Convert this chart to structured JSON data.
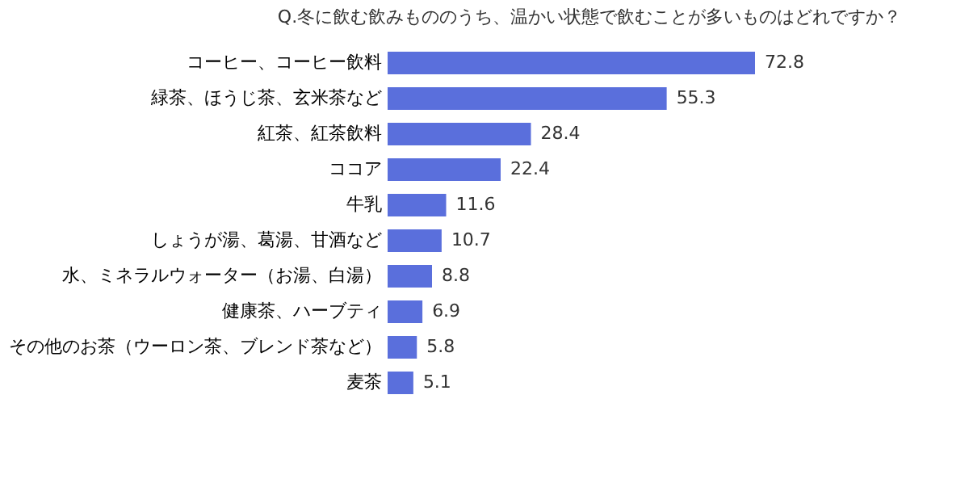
{
  "chart_data": {
    "type": "bar",
    "orientation": "horizontal",
    "title": "Q.冬に飲む飲みもののうち、温かい状態で飲むことが多いものはどれですか？",
    "categories": [
      "コーヒー、コーヒー飲料",
      "緑茶、ほうじ茶、玄米茶など",
      "紅茶、紅茶飲料",
      "ココア",
      "牛乳",
      "しょうが湯、葛湯、甘酒など",
      "水、ミネラルウォーター（お湯、白湯）",
      "健康茶、ハーブティ",
      "その他のお茶（ウーロン茶、ブレンド茶など）",
      "麦茶"
    ],
    "values": [
      72.8,
      55.3,
      28.4,
      22.4,
      11.6,
      10.7,
      8.8,
      6.9,
      5.8,
      5.1
    ],
    "color": "#5a6fdc",
    "data_labels": true
  }
}
